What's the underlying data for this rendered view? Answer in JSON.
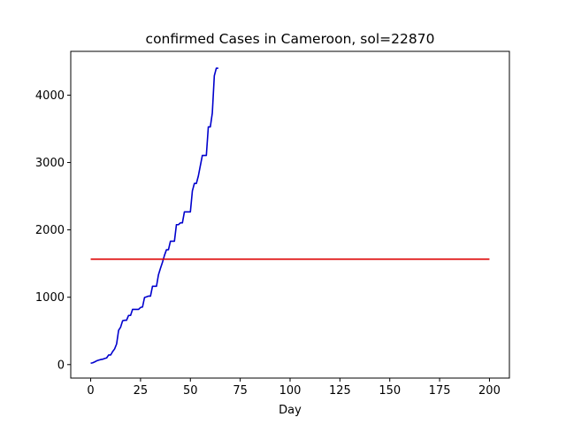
{
  "chart_data": {
    "type": "line",
    "title": "confirmed Cases in Cameroon, sol=22870",
    "xlabel": "Day",
    "ylabel": "",
    "xlim": [
      -10,
      210
    ],
    "ylim": [
      -200,
      4650
    ],
    "xticks": [
      0,
      25,
      50,
      75,
      100,
      125,
      150,
      175,
      200
    ],
    "yticks": [
      0,
      1000,
      2000,
      3000,
      4000
    ],
    "grid": false,
    "series": [
      {
        "color": "#0000cd",
        "x": [
          0,
          1,
          2,
          3,
          4,
          5,
          6,
          7,
          8,
          9,
          10,
          11,
          12,
          13,
          14,
          15,
          16,
          17,
          18,
          19,
          20,
          21,
          22,
          23,
          24,
          25,
          26,
          27,
          28,
          29,
          30,
          31,
          32,
          33,
          34,
          35,
          36,
          37,
          38,
          39,
          40,
          41,
          42,
          43,
          44,
          45,
          46,
          47,
          48,
          49,
          50,
          51,
          52,
          53,
          54,
          55,
          56,
          57,
          58,
          59,
          60,
          61,
          62,
          63,
          64
        ],
        "values": [
          20,
          27,
          40,
          56,
          66,
          75,
          80,
          91,
          99,
          142,
          142,
          193,
          233,
          306,
          509,
          555,
          650,
          658,
          658,
          730,
          730,
          820,
          820,
          820,
          820,
          848,
          855,
          996,
          1006,
          1017,
          1017,
          1163,
          1163,
          1163,
          1334,
          1430,
          1518,
          1621,
          1705,
          1705,
          1832,
          1832,
          1832,
          2077,
          2077,
          2104,
          2104,
          2267,
          2267,
          2267,
          2267,
          2579,
          2689,
          2689,
          2800,
          2954,
          3105,
          3105,
          3105,
          3529,
          3529,
          3733,
          4288,
          4400,
          4400
        ]
      },
      {
        "color": "#dd0000",
        "x": [
          0,
          200
        ],
        "values": [
          1565,
          1565
        ]
      }
    ]
  }
}
